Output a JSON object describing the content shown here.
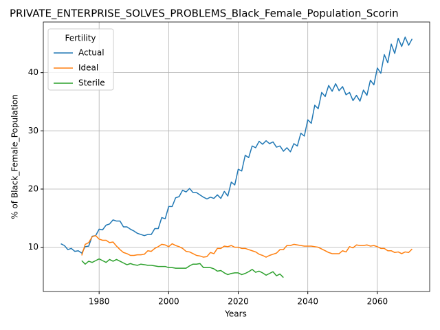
{
  "chart_data": {
    "type": "line",
    "title": "PRIVATE_ENTERPRISE_SOLVES_PROBLEMS_Black_Female_Population_Scorin",
    "xlabel": "Years",
    "ylabel": "% of Black_Female_Population",
    "legend_title": "Fertility",
    "legend": "upper left",
    "grid": true,
    "xlim": [
      1963.95,
      2075.05
    ],
    "ylim": [
      2.4,
      48.7
    ],
    "xticks": [
      1980,
      2000,
      2020,
      2040,
      2060
    ],
    "yticks": [
      10,
      20,
      30,
      40
    ],
    "x": [
      1969,
      1970,
      1971,
      1972,
      1973,
      1974,
      1975,
      1976,
      1977,
      1978,
      1979,
      1980,
      1981,
      1982,
      1983,
      1984,
      1985,
      1986,
      1987,
      1988,
      1989,
      1990,
      1991,
      1992,
      1993,
      1994,
      1995,
      1996,
      1997,
      1998,
      1999,
      2000,
      2001,
      2002,
      2003,
      2004,
      2005,
      2006,
      2007,
      2008,
      2009,
      2010,
      2011,
      2012,
      2013,
      2014,
      2015,
      2016,
      2017,
      2018,
      2019,
      2020,
      2021,
      2022,
      2023,
      2024,
      2025,
      2026,
      2027,
      2028,
      2029,
      2030,
      2031,
      2032,
      2033,
      2034,
      2035,
      2036,
      2037,
      2038,
      2039,
      2040,
      2041,
      2042,
      2043,
      2044,
      2045,
      2046,
      2047,
      2048,
      2049,
      2050,
      2051,
      2052,
      2053,
      2054,
      2055,
      2056,
      2057,
      2058,
      2059,
      2060,
      2061,
      2062,
      2063,
      2064,
      2065,
      2066,
      2067,
      2068,
      2069,
      2070
    ],
    "series": [
      {
        "name": "Actual",
        "color": "#1f77b4",
        "values": [
          10.6,
          10.3,
          9.6,
          9.8,
          9.3,
          9.4,
          9.0,
          10.1,
          10.2,
          11.9,
          12.0,
          13.1,
          13.0,
          13.8,
          14.0,
          14.7,
          14.5,
          14.5,
          13.5,
          13.5,
          13.1,
          12.8,
          12.4,
          12.2,
          12.0,
          12.2,
          12.2,
          13.2,
          13.2,
          15.1,
          14.9,
          17.0,
          17.0,
          18.5,
          18.7,
          19.8,
          19.5,
          20.1,
          19.4,
          19.4,
          19.0,
          18.6,
          18.3,
          18.6,
          18.4,
          19.0,
          18.4,
          19.6,
          18.8,
          21.2,
          20.7,
          23.4,
          23.1,
          25.8,
          25.4,
          27.4,
          27.1,
          28.2,
          27.7,
          28.3,
          27.8,
          28.1,
          27.2,
          27.4,
          26.5,
          27.1,
          26.4,
          27.8,
          27.4,
          29.6,
          29.1,
          31.9,
          31.3,
          34.4,
          33.8,
          36.6,
          35.9,
          37.8,
          36.8,
          38.1,
          36.9,
          37.6,
          36.2,
          36.6,
          35.2,
          36.1,
          35.1,
          37.0,
          36.1,
          38.7,
          37.9,
          40.8,
          39.9,
          43.1,
          41.7,
          44.9,
          43.3,
          45.9,
          44.5,
          46.1,
          44.7,
          45.8
        ]
      },
      {
        "name": "Ideal",
        "color": "#ff7f0e",
        "values": [
          null,
          null,
          null,
          null,
          null,
          null,
          8.6,
          10.5,
          10.8,
          11.8,
          12.0,
          11.4,
          11.2,
          11.2,
          10.8,
          10.9,
          10.2,
          9.6,
          9.1,
          8.9,
          8.6,
          8.6,
          8.7,
          8.7,
          8.8,
          9.4,
          9.3,
          9.8,
          10.1,
          10.5,
          10.4,
          10.1,
          10.6,
          10.3,
          10.1,
          9.8,
          9.3,
          9.2,
          8.9,
          8.6,
          8.5,
          8.3,
          8.4,
          9.1,
          8.9,
          9.8,
          9.8,
          10.2,
          10.1,
          10.3,
          10.0,
          10.0,
          9.8,
          9.8,
          9.6,
          9.4,
          9.2,
          8.8,
          8.6,
          8.3,
          8.6,
          8.8,
          9.0,
          9.6,
          9.6,
          10.3,
          10.3,
          10.5,
          10.4,
          10.3,
          10.2,
          10.2,
          10.2,
          10.1,
          10.0,
          9.7,
          9.4,
          9.1,
          8.9,
          8.9,
          8.9,
          9.4,
          9.2,
          10.1,
          9.9,
          10.4,
          10.3,
          10.3,
          10.4,
          10.2,
          10.3,
          10.1,
          9.8,
          9.8,
          9.4,
          9.4,
          9.1,
          9.2,
          8.9,
          9.2,
          9.1,
          9.7
        ]
      },
      {
        "name": "Sterile",
        "color": "#2ca02c",
        "values": [
          null,
          null,
          null,
          null,
          null,
          null,
          7.7,
          7.1,
          7.6,
          7.4,
          7.7,
          8.0,
          7.7,
          7.4,
          7.9,
          7.6,
          7.9,
          7.6,
          7.3,
          7.0,
          7.2,
          7.0,
          6.9,
          7.1,
          7.0,
          6.9,
          6.9,
          6.8,
          6.7,
          6.7,
          6.7,
          6.5,
          6.5,
          6.4,
          6.4,
          6.4,
          6.4,
          6.8,
          7.1,
          7.1,
          7.2,
          6.5,
          6.5,
          6.5,
          6.3,
          5.9,
          6.0,
          5.6,
          5.3,
          5.5,
          5.6,
          5.6,
          5.3,
          5.5,
          5.8,
          6.2,
          5.7,
          5.9,
          5.6,
          5.2,
          5.5,
          5.8,
          5.1,
          5.4,
          4.8,
          null,
          null,
          null,
          null,
          null,
          null,
          null,
          null,
          null,
          null,
          null,
          null,
          null,
          null,
          null,
          null,
          null,
          null,
          null,
          null,
          null,
          null,
          null,
          null,
          null,
          null,
          null,
          null,
          null,
          null,
          null,
          null,
          null,
          null,
          null,
          null,
          null
        ]
      }
    ]
  }
}
